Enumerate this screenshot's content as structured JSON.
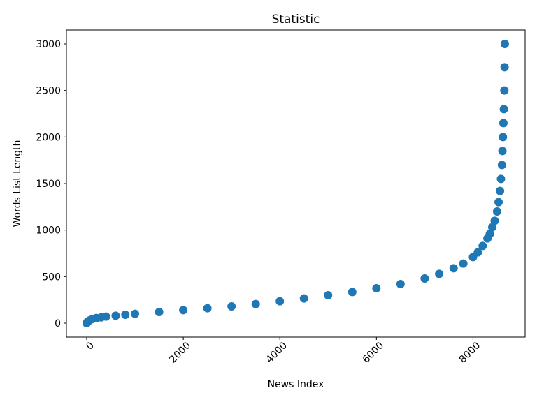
{
  "chart_data": {
    "type": "scatter",
    "title": "Statistic",
    "xlabel": "News Index",
    "ylabel": "Words List Length",
    "xlim": [
      -420,
      9080
    ],
    "ylim": [
      -150,
      3150
    ],
    "xticks": [
      0,
      2000,
      4000,
      6000,
      8000
    ],
    "xtick_labels": [
      "0",
      "2000",
      "4000",
      "6000",
      "8000"
    ],
    "yticks": [
      0,
      500,
      1000,
      1500,
      2000,
      2500,
      3000
    ],
    "ytick_labels": [
      "0",
      "500",
      "1000",
      "1500",
      "2000",
      "2500",
      "3000"
    ],
    "xtick_rotation": 45,
    "grid": false,
    "legend": "none",
    "color": "#1f77b4",
    "series": [
      {
        "x": [
          0,
          20,
          60,
          120,
          200,
          300,
          400,
          600,
          800,
          1000,
          1500,
          2000,
          2500,
          3000,
          3500,
          4000,
          4500,
          5000,
          5500,
          6000,
          6500,
          7000,
          7300,
          7600,
          7800,
          8000,
          8100,
          8200,
          8300,
          8350,
          8400,
          8450,
          8500,
          8530,
          8560,
          8580,
          8600,
          8610,
          8620,
          8630,
          8640,
          8650,
          8655,
          8660
        ],
        "y": [
          0,
          15,
          30,
          45,
          55,
          62,
          70,
          80,
          90,
          100,
          120,
          140,
          160,
          180,
          205,
          235,
          265,
          300,
          335,
          375,
          420,
          480,
          530,
          590,
          640,
          710,
          760,
          830,
          910,
          960,
          1030,
          1100,
          1200,
          1300,
          1420,
          1550,
          1700,
          1850,
          2000,
          2150,
          2300,
          2500,
          2750,
          3000
        ]
      }
    ]
  }
}
